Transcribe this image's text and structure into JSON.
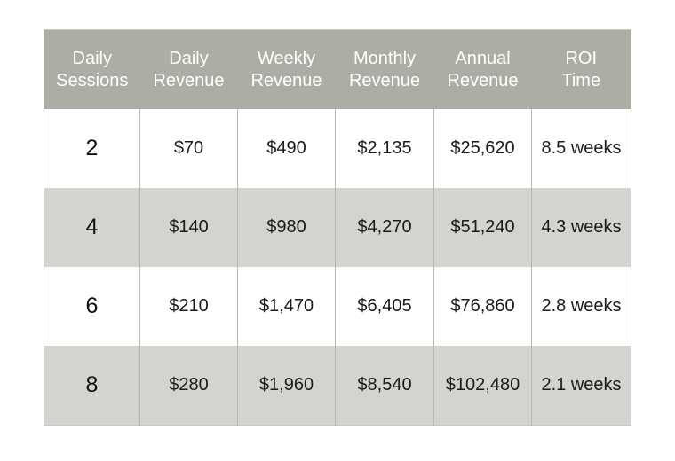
{
  "chart_data": {
    "type": "table",
    "columns": [
      {
        "lines": [
          "Daily",
          "Sessions"
        ]
      },
      {
        "lines": [
          "Daily",
          "Revenue"
        ]
      },
      {
        "lines": [
          "Weekly",
          "Revenue"
        ]
      },
      {
        "lines": [
          "Monthly",
          "Revenue"
        ]
      },
      {
        "lines": [
          "Annual",
          "Revenue"
        ]
      },
      {
        "lines": [
          "ROI",
          "Time"
        ]
      }
    ],
    "rows": [
      [
        "2",
        "$70",
        "$490",
        "$2,135",
        "$25,620",
        "8.5 weeks"
      ],
      [
        "4",
        "$140",
        "$980",
        "$4,270",
        "$51,240",
        "4.3 weeks"
      ],
      [
        "6",
        "$210",
        "$1,470",
        "$6,405",
        "$76,860",
        "2.8 weeks"
      ],
      [
        "8",
        "$280",
        "$1,960",
        "$8,540",
        "$102,480",
        "2.1 weeks"
      ]
    ],
    "colors": {
      "header_bg": "#adada5",
      "header_text": "#ffffff",
      "row_alt_bg": "#d3d3d0",
      "row_bg": "#ffffff"
    }
  }
}
